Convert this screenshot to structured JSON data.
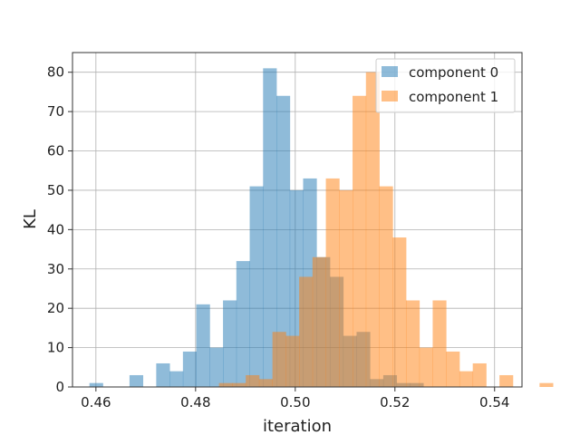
{
  "chart_data": {
    "type": "histogram",
    "title": "",
    "xlabel": "iteration",
    "ylabel": "KL",
    "xlim": [
      0.4553,
      0.5455
    ],
    "ylim": [
      0,
      85
    ],
    "grid": true,
    "legend_position": "top-right",
    "x_ticks": [
      0.46,
      0.48,
      0.5,
      0.52,
      0.54
    ],
    "x_tick_labels": [
      "0.46",
      "0.48",
      "0.50",
      "0.52",
      "0.54"
    ],
    "y_ticks": [
      0,
      10,
      20,
      30,
      40,
      50,
      60,
      70,
      80
    ],
    "y_tick_labels": [
      "0",
      "10",
      "20",
      "30",
      "40",
      "50",
      "60",
      "70",
      "80"
    ],
    "bin_width": 0.00268,
    "series": [
      {
        "name": "component 0",
        "color": "#1f77b4",
        "alpha": 0.5,
        "bin_start": 0.4587,
        "counts": [
          1,
          0,
          0,
          3,
          0,
          6,
          4,
          9,
          21,
          10,
          22,
          32,
          51,
          81,
          74,
          50,
          53,
          33,
          28,
          13,
          14,
          2,
          3,
          1,
          1
        ]
      },
      {
        "name": "component 1",
        "color": "#ff7f0e",
        "alpha": 0.5,
        "bin_start": 0.4847,
        "counts": [
          1,
          1,
          3,
          2,
          14,
          13,
          28,
          33,
          53,
          50,
          74,
          80,
          51,
          38,
          22,
          10,
          22,
          9,
          4,
          6,
          0,
          3,
          0,
          0,
          1
        ]
      }
    ]
  }
}
